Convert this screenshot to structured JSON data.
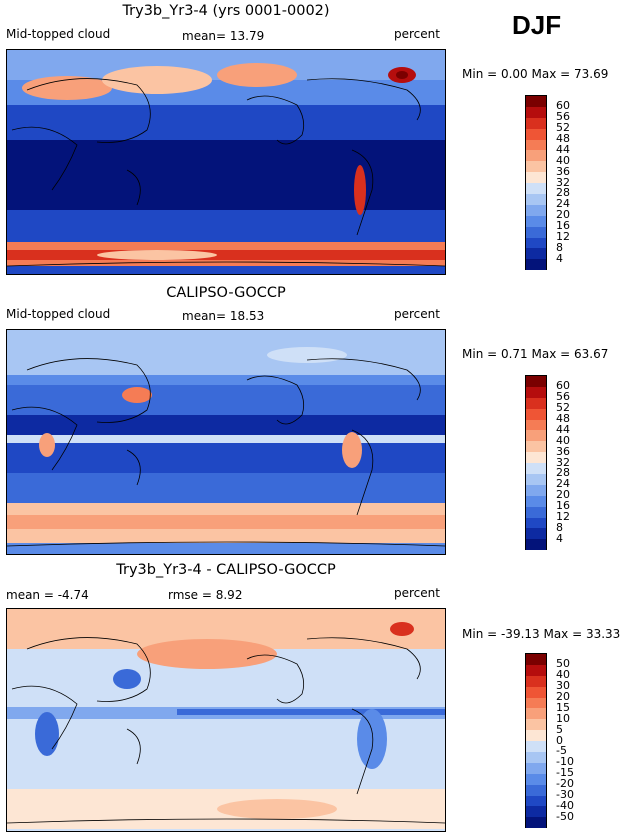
{
  "season": "DJF",
  "panels": [
    {
      "title": "Try3b_Yr3-4 (yrs 0001-0002)",
      "left_label": "Mid-topped cloud",
      "center_label": "mean=  13.79",
      "right_label": "percent",
      "minmax": "Min =   0.00 Max =  73.69"
    },
    {
      "title": "CALIPSO-GOCCP",
      "left_label": "Mid-topped cloud",
      "center_label": "mean=  18.53",
      "right_label": "percent",
      "minmax": "Min =   0.71 Max =  63.67"
    },
    {
      "title": "Try3b_Yr3-4 - CALIPSO-GOCCP",
      "left_label": "mean =  -4.74",
      "center_label": "rmse =   8.92",
      "right_label": "percent",
      "minmax": "Min = -39.13 Max =  33.33"
    }
  ],
  "chart_data": [
    {
      "type": "heatmap",
      "title": "Try3b_Yr3-4 (yrs 0001-0002)",
      "variable": "Mid-topped cloud",
      "units": "percent",
      "mean": 13.79,
      "min": 0.0,
      "max": 73.69,
      "colorbar_ticks": [
        "60",
        "56",
        "52",
        "48",
        "44",
        "40",
        "36",
        "32",
        "28",
        "24",
        "20",
        "16",
        "12",
        "8",
        "4"
      ],
      "colorbar_colors": [
        "#7a0000",
        "#b50d0d",
        "#d9301e",
        "#ef5535",
        "#f57c55",
        "#f8a07a",
        "#fbc4a3",
        "#fde6d4",
        "#cfe0f7",
        "#a8c6f3",
        "#80a8ee",
        "#5a8be8",
        "#3a6ad8",
        "#1f48c4",
        "#0d2aa2",
        "#03137a"
      ]
    },
    {
      "type": "heatmap",
      "title": "CALIPSO-GOCCP",
      "variable": "Mid-topped cloud",
      "units": "percent",
      "mean": 18.53,
      "min": 0.71,
      "max": 63.67,
      "colorbar_ticks": [
        "60",
        "56",
        "52",
        "48",
        "44",
        "40",
        "36",
        "32",
        "28",
        "24",
        "20",
        "16",
        "12",
        "8",
        "4"
      ],
      "colorbar_colors": [
        "#7a0000",
        "#b50d0d",
        "#d9301e",
        "#ef5535",
        "#f57c55",
        "#f8a07a",
        "#fbc4a3",
        "#fde6d4",
        "#cfe0f7",
        "#a8c6f3",
        "#80a8ee",
        "#5a8be8",
        "#3a6ad8",
        "#1f48c4",
        "#0d2aa2",
        "#03137a"
      ]
    },
    {
      "type": "heatmap",
      "title": "Try3b_Yr3-4 - CALIPSO-GOCCP",
      "units": "percent",
      "mean": -4.74,
      "rmse": 8.92,
      "min": -39.13,
      "max": 33.33,
      "colorbar_ticks": [
        "50",
        "40",
        "30",
        "20",
        "15",
        "10",
        "5",
        "0",
        "-5",
        "-10",
        "-15",
        "-20",
        "-30",
        "-40",
        "-50"
      ],
      "colorbar_colors": [
        "#7a0000",
        "#b50d0d",
        "#d9301e",
        "#ef5535",
        "#f57c55",
        "#f8a07a",
        "#fbc4a3",
        "#fde6d4",
        "#cfe0f7",
        "#a8c6f3",
        "#80a8ee",
        "#5a8be8",
        "#3a6ad8",
        "#1f48c4",
        "#0d2aa2",
        "#03137a"
      ]
    }
  ]
}
